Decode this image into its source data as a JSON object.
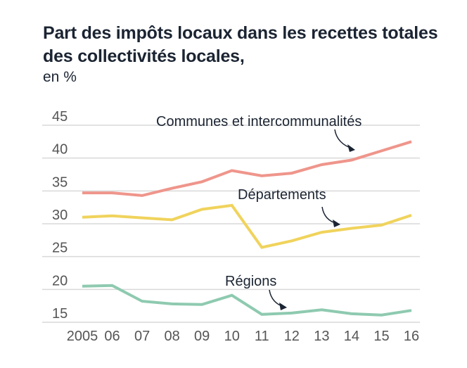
{
  "chart_data": {
    "type": "line",
    "title": "Part des impôts locaux dans les recettes totales des collectivités locales,",
    "subtitle": "en %",
    "xlabel": "",
    "ylabel": "",
    "x": [
      "2005",
      "06",
      "07",
      "08",
      "09",
      "10",
      "11",
      "12",
      "13",
      "14",
      "15",
      "16"
    ],
    "ylim": [
      15,
      45
    ],
    "yticks": [
      45,
      40,
      35,
      30,
      25,
      20,
      15
    ],
    "grid": true,
    "legend": "inline annotations",
    "series": [
      {
        "name": "Communes et intercommunalités",
        "color": "#ef958b",
        "values": [
          34.7,
          34.7,
          34.3,
          35.4,
          36.4,
          38.1,
          37.3,
          37.7,
          39.0,
          39.7,
          41.1,
          42.5
        ]
      },
      {
        "name": "Départements",
        "color": "#f0d35c",
        "values": [
          31.0,
          31.2,
          30.9,
          30.6,
          32.2,
          32.8,
          26.4,
          27.4,
          28.7,
          29.3,
          29.8,
          31.3
        ]
      },
      {
        "name": "Régions",
        "color": "#8ecab0",
        "values": [
          20.5,
          20.6,
          18.2,
          17.8,
          17.7,
          19.1,
          16.2,
          16.4,
          16.9,
          16.3,
          16.1,
          16.8
        ]
      }
    ],
    "annotations": [
      {
        "text": "Communes et intercommunalités",
        "series": 0,
        "points_to": "14"
      },
      {
        "text": "Départements",
        "series": 1,
        "points_to": "14"
      },
      {
        "text": "Régions",
        "series": 2,
        "points_to": "12"
      }
    ]
  }
}
